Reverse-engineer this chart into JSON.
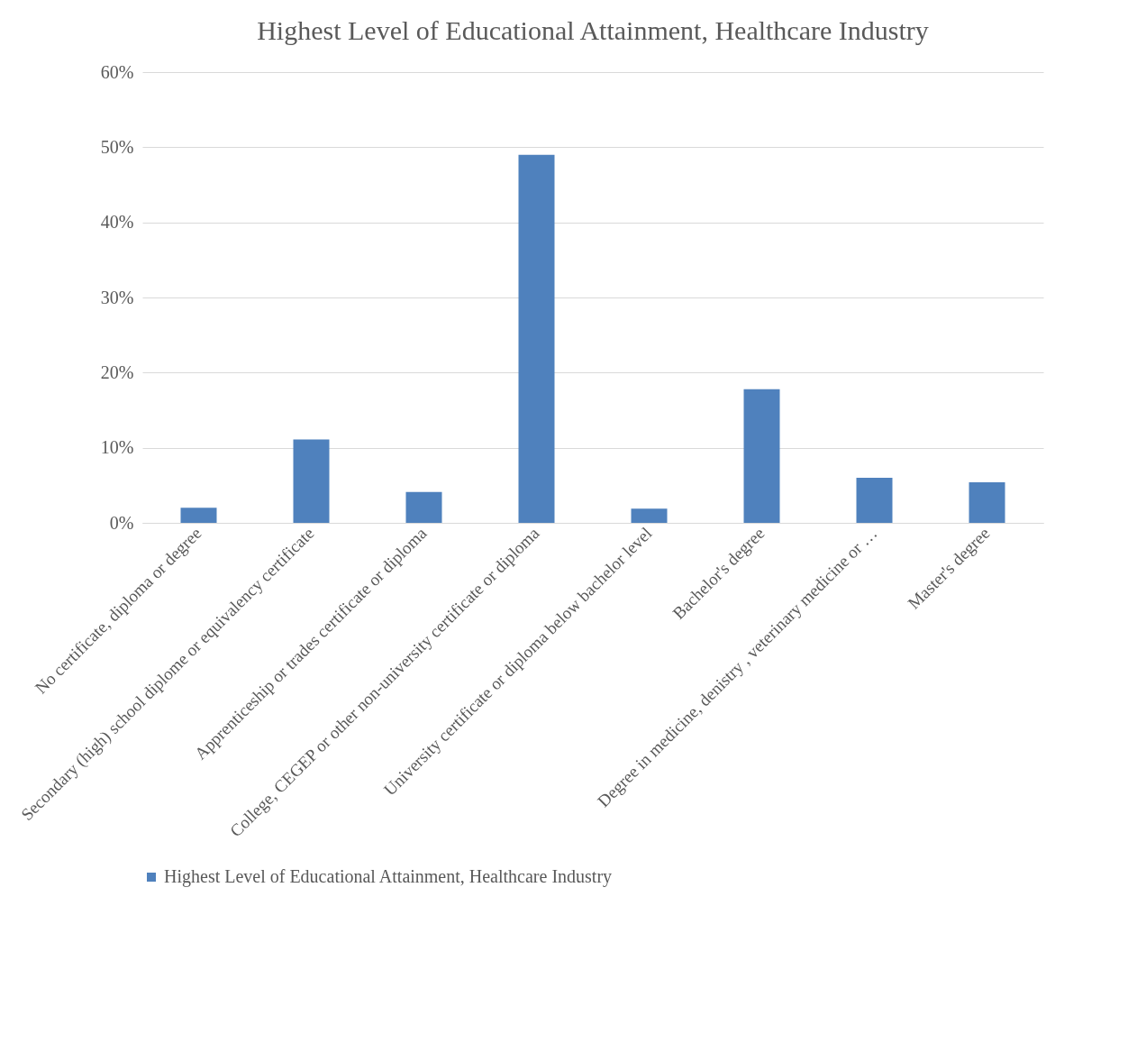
{
  "chart_data": {
    "type": "bar",
    "title": "Highest Level of Educational Attainment, Healthcare Industry",
    "categories": [
      "No certificate, diploma or degree",
      "Secondary (high) school diplome or equivalency certificate",
      "Apprenticeship or trades certificate or diploma",
      "College, CEGEP or other non-university certificate or diploma",
      "University certificate or diploma below bachelor level",
      "Bachelor's degree",
      "Degree in medicine, denistry , veterinary medicine or …",
      "Master's degree"
    ],
    "series": [
      {
        "name": "Highest Level of Educational Attainment, Healthcare Industry",
        "color": "#4f81bd",
        "values": [
          2.0,
          11.1,
          4.1,
          49.0,
          1.9,
          17.8,
          6.0,
          5.4
        ]
      }
    ],
    "ylim": [
      0,
      60
    ],
    "yticks": [
      {
        "value": 0,
        "label": "0%"
      },
      {
        "value": 10,
        "label": "10%"
      },
      {
        "value": 20,
        "label": "20%"
      },
      {
        "value": 30,
        "label": "30%"
      },
      {
        "value": 40,
        "label": "40%"
      },
      {
        "value": 50,
        "label": "50%"
      },
      {
        "value": 60,
        "label": "60%"
      }
    ],
    "grid": "y",
    "legend": "bottom"
  }
}
